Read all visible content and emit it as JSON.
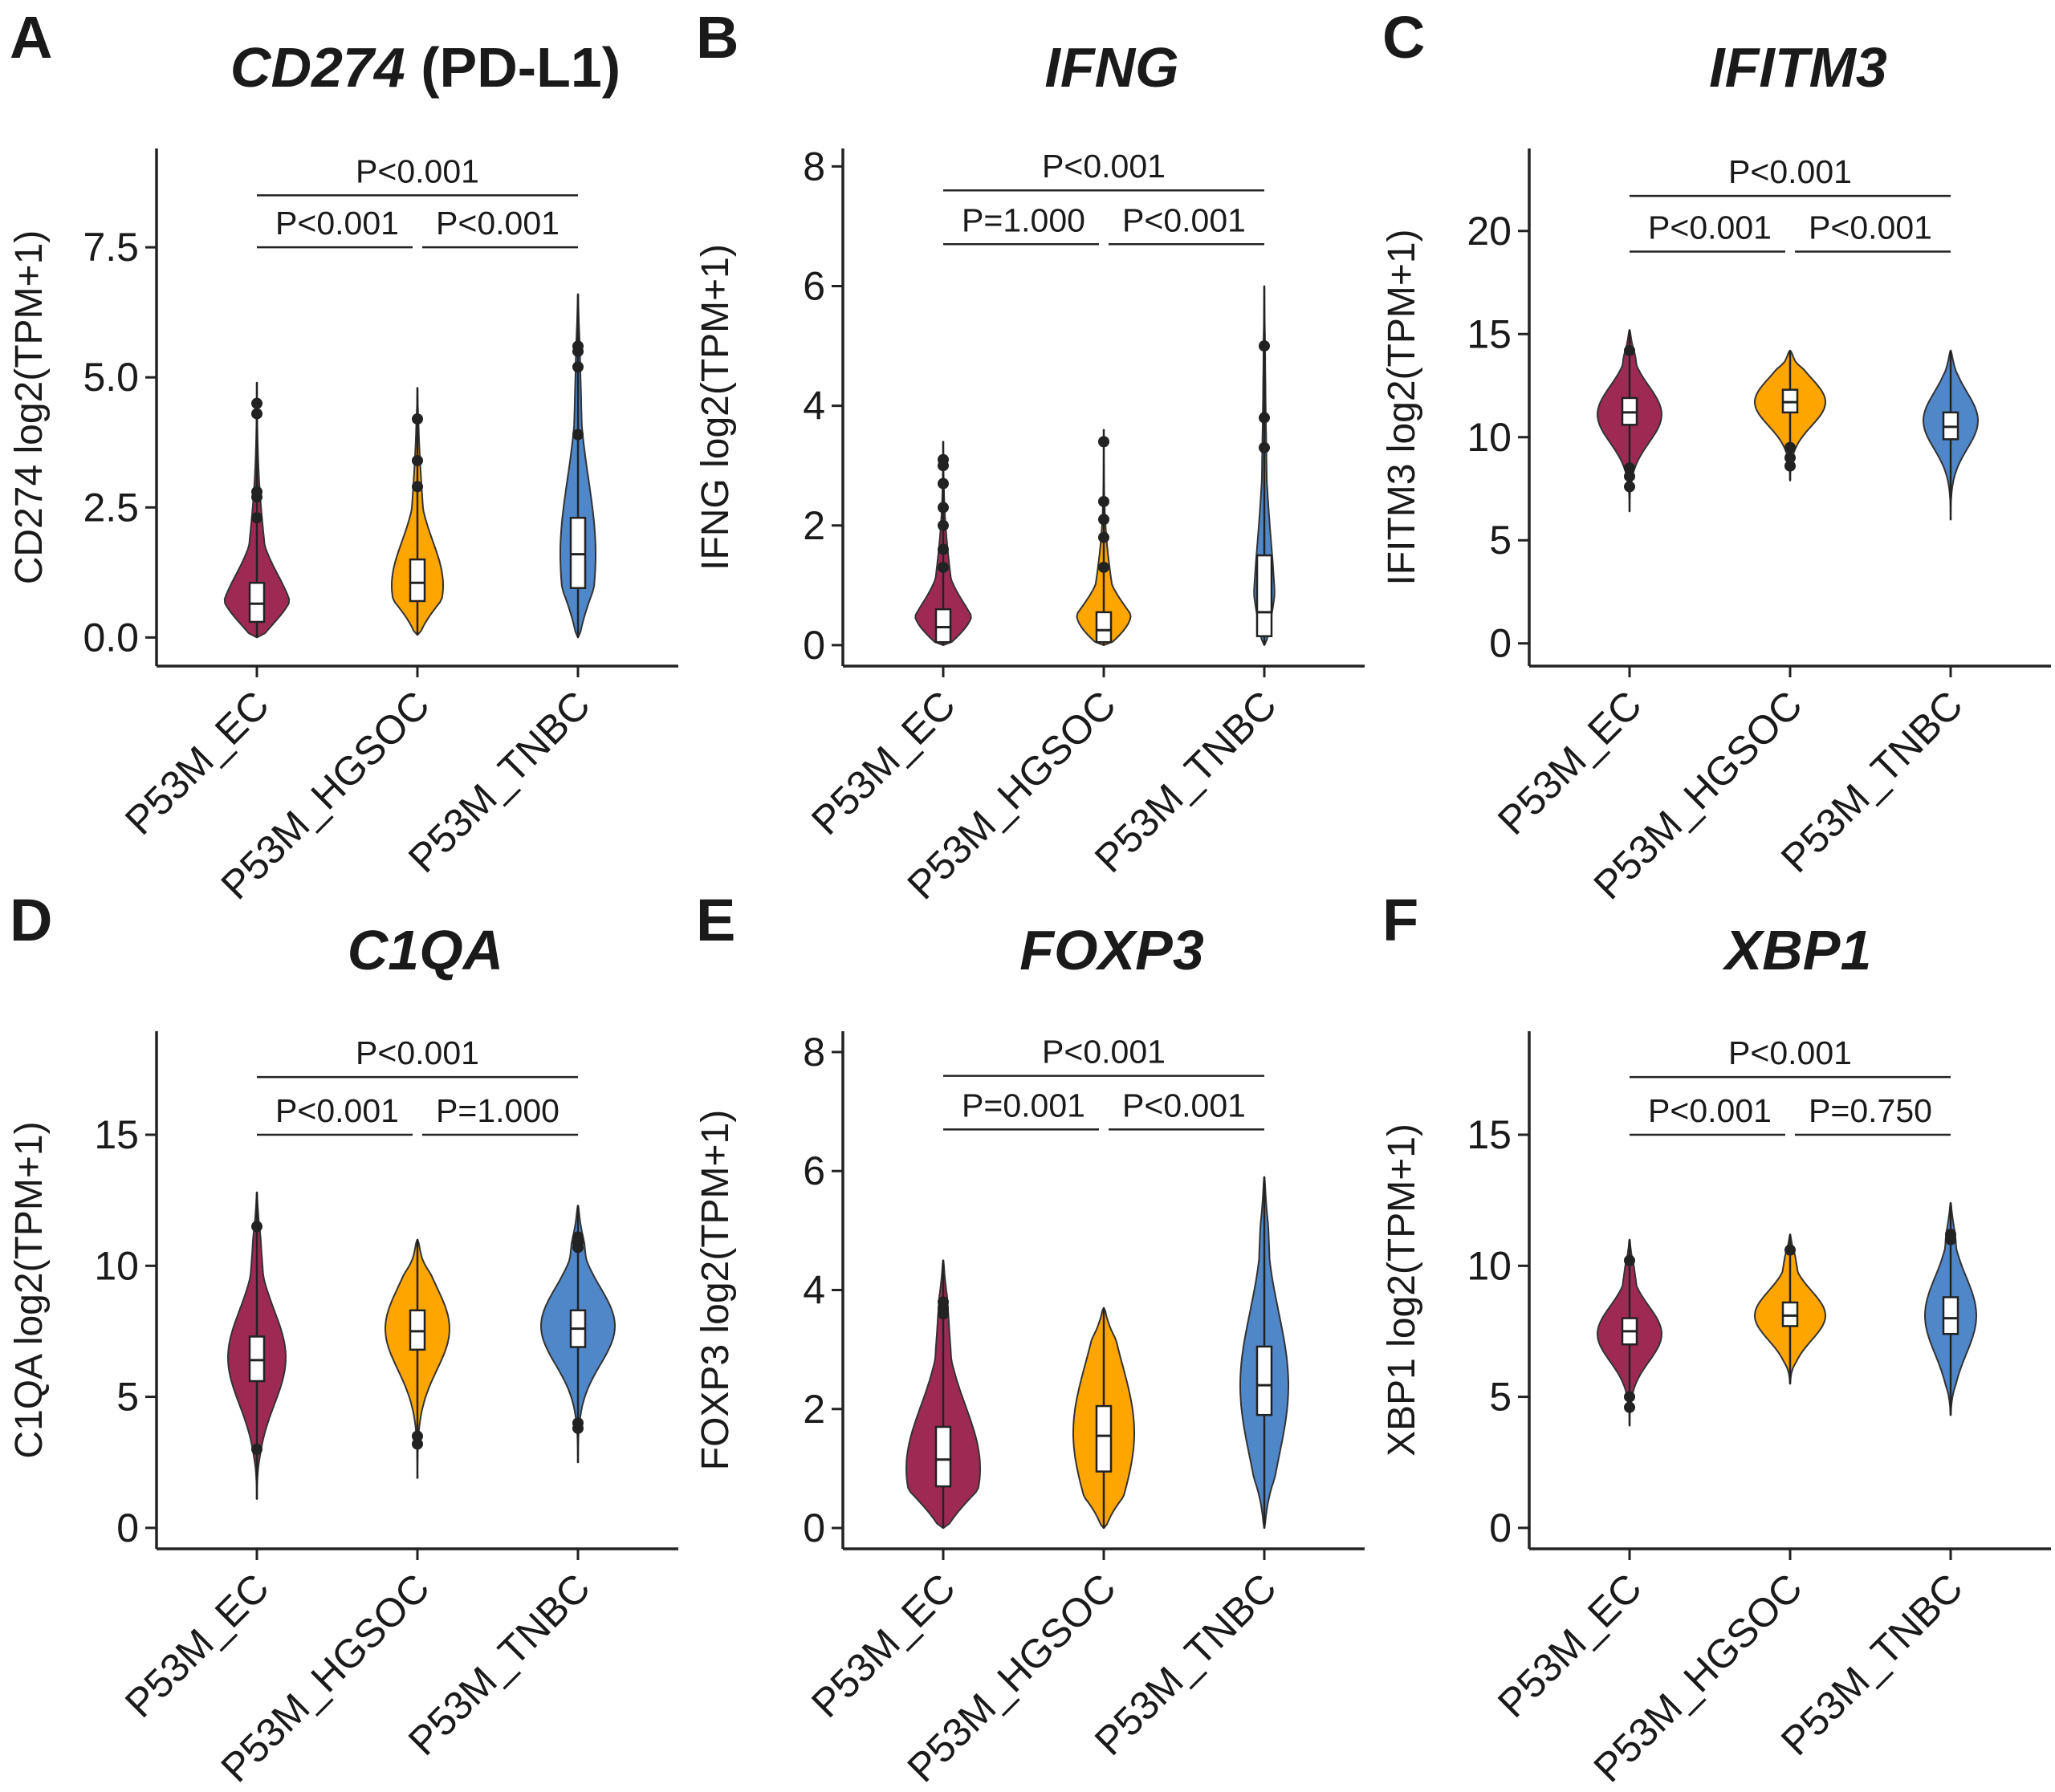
{
  "chart_data": [
    {
      "panel": "A",
      "type": "violin",
      "title": "CD274",
      "title_suffix": " (PD-L1)",
      "ylabel": "CD274 log2(TPM+1)",
      "ylim": [
        -0.55,
        9.4
      ],
      "yticks": [
        0,
        2.5,
        5,
        7.5
      ],
      "ytick_labels": [
        "0.0",
        "2.5",
        "5.0",
        "7.5"
      ],
      "categories": [
        "P53M_EC",
        "P53M_HGSOC",
        "P53M_TNBC"
      ],
      "colors": [
        "#9E2A54",
        "#FFA500",
        "#4F87C9"
      ],
      "violins": [
        {
          "min": 0.0,
          "max": 4.9,
          "median": 0.65,
          "q1": 0.3,
          "q3": 1.05,
          "mode": 0.4,
          "maxw": 0.44,
          "outliers": [
            4.5,
            4.3,
            2.8,
            2.7,
            2.3
          ]
        },
        {
          "min": 0.05,
          "max": 4.8,
          "median": 1.05,
          "q1": 0.7,
          "q3": 1.5,
          "mode": 1.0,
          "maxw": 0.32,
          "outliers": [
            4.2,
            3.4,
            2.9
          ]
        },
        {
          "min": 0.0,
          "max": 6.6,
          "median": 1.6,
          "q1": 0.95,
          "q3": 2.3,
          "mode": 1.6,
          "maxw": 0.22,
          "outliers": [
            5.6,
            5.5,
            5.2,
            3.9
          ]
        }
      ],
      "comparisons": [
        {
          "groups": [
            0,
            2
          ],
          "y": 8.5,
          "label": "P<0.001"
        },
        {
          "groups": [
            0,
            1
          ],
          "y": 7.5,
          "label": "P<0.001"
        },
        {
          "groups": [
            1,
            2
          ],
          "y": 7.5,
          "label": "P<0.001"
        }
      ]
    },
    {
      "panel": "B",
      "type": "violin",
      "title": "IFNG",
      "title_suffix": "",
      "ylabel": "IFNG log2(TPM+1)",
      "ylim": [
        -0.35,
        8.3
      ],
      "yticks": [
        0,
        2,
        4,
        6,
        8
      ],
      "ytick_labels": [
        "0",
        "2",
        "4",
        "6",
        "8"
      ],
      "categories": [
        "P53M_EC",
        "P53M_HGSOC",
        "P53M_TNBC"
      ],
      "colors": [
        "#9E2A54",
        "#FFA500",
        "#4F87C9"
      ],
      "violins": [
        {
          "min": 0.0,
          "max": 3.4,
          "median": 0.3,
          "q1": 0.05,
          "q3": 0.6,
          "mode": 0.1,
          "maxw": 0.44,
          "outliers": [
            3.1,
            3.0,
            2.7,
            2.3,
            2.0,
            1.6,
            1.3
          ]
        },
        {
          "min": 0.0,
          "max": 3.6,
          "median": 0.25,
          "q1": 0.05,
          "q3": 0.55,
          "mode": 0.1,
          "maxw": 0.46,
          "outliers": [
            3.4,
            2.4,
            2.1,
            1.8,
            1.3
          ]
        },
        {
          "min": 0.0,
          "max": 6.0,
          "median": 0.55,
          "q1": 0.15,
          "q3": 1.5,
          "mode": 0.3,
          "maxw": 0.14,
          "outliers": [
            5.0,
            3.8,
            3.3
          ]
        }
      ],
      "comparisons": [
        {
          "groups": [
            0,
            2
          ],
          "y": 7.6,
          "label": "P<0.001"
        },
        {
          "groups": [
            0,
            1
          ],
          "y": 6.7,
          "label": "P=1.000"
        },
        {
          "groups": [
            1,
            2
          ],
          "y": 6.7,
          "label": "P<0.001"
        }
      ]
    },
    {
      "panel": "C",
      "type": "violin",
      "title": "IFITM3",
      "title_suffix": "",
      "ylabel": "IFITM3 log2(TPM+1)",
      "ylim": [
        -1.1,
        24.0
      ],
      "yticks": [
        0,
        5,
        10,
        15,
        20
      ],
      "ytick_labels": [
        "0",
        "5",
        "10",
        "15",
        "20"
      ],
      "categories": [
        "P53M_EC",
        "P53M_HGSOC",
        "P53M_TNBC"
      ],
      "colors": [
        "#9E2A54",
        "#FFA500",
        "#4F87C9"
      ],
      "violins": [
        {
          "min": 6.4,
          "max": 15.2,
          "median": 11.2,
          "q1": 10.6,
          "q3": 11.9,
          "mode": 11.1,
          "maxw": 0.4,
          "outliers": [
            14.2,
            8.5,
            8.1,
            7.6
          ]
        },
        {
          "min": 7.9,
          "max": 14.2,
          "median": 11.7,
          "q1": 11.2,
          "q3": 12.3,
          "mode": 11.7,
          "maxw": 0.44,
          "outliers": [
            9.5,
            9.0,
            8.6
          ]
        },
        {
          "min": 6.0,
          "max": 14.2,
          "median": 10.5,
          "q1": 9.9,
          "q3": 11.2,
          "mode": 10.8,
          "maxw": 0.34,
          "outliers": []
        }
      ],
      "comparisons": [
        {
          "groups": [
            0,
            2
          ],
          "y": 21.7,
          "label": "P<0.001"
        },
        {
          "groups": [
            0,
            1
          ],
          "y": 19.0,
          "label": "P<0.001"
        },
        {
          "groups": [
            1,
            2
          ],
          "y": 19.0,
          "label": "P<0.001"
        }
      ]
    },
    {
      "panel": "D",
      "type": "violin",
      "title": "C1QA",
      "title_suffix": "",
      "ylabel": "C1QA log2(TPM+1)",
      "ylim": [
        -0.8,
        18.95
      ],
      "yticks": [
        0,
        5,
        10,
        15
      ],
      "ytick_labels": [
        "0",
        "5",
        "10",
        "15"
      ],
      "categories": [
        "P53M_EC",
        "P53M_HGSOC",
        "P53M_TNBC"
      ],
      "colors": [
        "#9E2A54",
        "#FFA500",
        "#4F87C9"
      ],
      "violins": [
        {
          "min": 1.1,
          "max": 12.8,
          "median": 6.4,
          "q1": 5.6,
          "q3": 7.3,
          "mode": 6.5,
          "maxw": 0.36,
          "outliers": [
            11.5,
            3.0
          ]
        },
        {
          "min": 1.9,
          "max": 11.0,
          "median": 7.5,
          "q1": 6.8,
          "q3": 8.3,
          "mode": 7.6,
          "maxw": 0.4,
          "outliers": [
            3.5,
            3.2
          ]
        },
        {
          "min": 2.5,
          "max": 12.3,
          "median": 7.6,
          "q1": 6.9,
          "q3": 8.3,
          "mode": 7.7,
          "maxw": 0.46,
          "outliers": [
            11.1,
            10.9,
            10.7,
            4.0,
            3.8
          ]
        }
      ],
      "comparisons": [
        {
          "groups": [
            0,
            2
          ],
          "y": 17.2,
          "label": "P<0.001"
        },
        {
          "groups": [
            0,
            1
          ],
          "y": 15.0,
          "label": "P<0.001"
        },
        {
          "groups": [
            1,
            2
          ],
          "y": 15.0,
          "label": "P=1.000"
        }
      ]
    },
    {
      "panel": "E",
      "type": "violin",
      "title": "FOXP3",
      "title_suffix": "",
      "ylabel": "FOXP3 log2(TPM+1)",
      "ylim": [
        -0.35,
        8.35
      ],
      "yticks": [
        0,
        2,
        4,
        6,
        8
      ],
      "ytick_labels": [
        "0",
        "2",
        "4",
        "6",
        "8"
      ],
      "categories": [
        "P53M_EC",
        "P53M_HGSOC",
        "P53M_TNBC"
      ],
      "colors": [
        "#9E2A54",
        "#FFA500",
        "#4F87C9"
      ],
      "violins": [
        {
          "min": 0.0,
          "max": 4.5,
          "median": 1.15,
          "q1": 0.7,
          "q3": 1.7,
          "mode": 1.0,
          "maxw": 0.46,
          "outliers": [
            3.8,
            3.7,
            3.6
          ]
        },
        {
          "min": 0.0,
          "max": 3.7,
          "median": 1.55,
          "q1": 0.95,
          "q3": 2.05,
          "mode": 1.6,
          "maxw": 0.38,
          "outliers": []
        },
        {
          "min": 0.0,
          "max": 5.9,
          "median": 2.4,
          "q1": 1.9,
          "q3": 3.05,
          "mode": 2.4,
          "maxw": 0.3,
          "outliers": []
        }
      ],
      "comparisons": [
        {
          "groups": [
            0,
            2
          ],
          "y": 7.6,
          "label": "P<0.001"
        },
        {
          "groups": [
            0,
            1
          ],
          "y": 6.7,
          "label": "P=0.001"
        },
        {
          "groups": [
            1,
            2
          ],
          "y": 6.7,
          "label": "P<0.001"
        }
      ]
    },
    {
      "panel": "F",
      "type": "violin",
      "title": "XBP1",
      "title_suffix": "",
      "ylabel": "XBP1 log2(TPM+1)",
      "ylim": [
        -0.8,
        18.95
      ],
      "yticks": [
        0,
        5,
        10,
        15
      ],
      "ytick_labels": [
        "0",
        "5",
        "10",
        "15"
      ],
      "categories": [
        "P53M_EC",
        "P53M_HGSOC",
        "P53M_TNBC"
      ],
      "colors": [
        "#9E2A54",
        "#FFA500",
        "#4F87C9"
      ],
      "violins": [
        {
          "min": 3.9,
          "max": 11.0,
          "median": 7.5,
          "q1": 7.0,
          "q3": 8.0,
          "mode": 7.4,
          "maxw": 0.4,
          "outliers": [
            10.2,
            5.0,
            4.6
          ]
        },
        {
          "min": 5.5,
          "max": 11.2,
          "median": 8.1,
          "q1": 7.7,
          "q3": 8.6,
          "mode": 8.1,
          "maxw": 0.44,
          "outliers": [
            10.6
          ]
        },
        {
          "min": 4.3,
          "max": 12.4,
          "median": 8.0,
          "q1": 7.4,
          "q3": 8.8,
          "mode": 8.1,
          "maxw": 0.32,
          "outliers": [
            11.2,
            11.0
          ]
        }
      ],
      "comparisons": [
        {
          "groups": [
            0,
            2
          ],
          "y": 17.2,
          "label": "P<0.001"
        },
        {
          "groups": [
            0,
            1
          ],
          "y": 15.0,
          "label": "P<0.001"
        },
        {
          "groups": [
            1,
            2
          ],
          "y": 15.0,
          "label": "P=0.750"
        }
      ]
    }
  ]
}
